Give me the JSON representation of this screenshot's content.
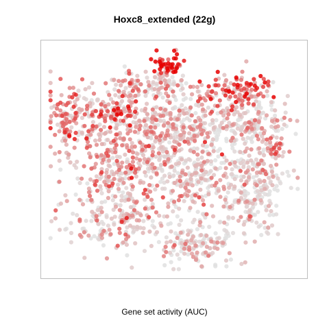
{
  "chart_data": {
    "type": "scatter",
    "title": "Hoxc8_extended (22g)",
    "xlabel": "Gene set activity (AUC)",
    "ylabel": "",
    "grid": false,
    "legend": "none",
    "color_scale": {
      "low": "#e0e0e0",
      "high": "#e60000"
    },
    "seed": 20240517,
    "clusters": [
      {
        "cx": 0.2,
        "cy": 0.3,
        "sx": 0.11,
        "sy": 0.07,
        "n": 210,
        "activity": 0.4
      },
      {
        "cx": 0.28,
        "cy": 0.52,
        "sx": 0.13,
        "sy": 0.1,
        "n": 300,
        "activity": 0.35
      },
      {
        "cx": 0.28,
        "cy": 0.76,
        "sx": 0.12,
        "sy": 0.07,
        "n": 200,
        "activity": 0.25
      },
      {
        "cx": 0.5,
        "cy": 0.33,
        "sx": 0.1,
        "sy": 0.07,
        "n": 230,
        "activity": 0.22
      },
      {
        "cx": 0.58,
        "cy": 0.55,
        "sx": 0.1,
        "sy": 0.11,
        "n": 300,
        "activity": 0.16
      },
      {
        "cx": 0.6,
        "cy": 0.87,
        "sx": 0.08,
        "sy": 0.05,
        "n": 150,
        "activity": 0.12
      },
      {
        "cx": 0.78,
        "cy": 0.34,
        "sx": 0.09,
        "sy": 0.06,
        "n": 190,
        "activity": 0.18
      },
      {
        "cx": 0.82,
        "cy": 0.62,
        "sx": 0.07,
        "sy": 0.11,
        "n": 230,
        "activity": 0.15
      },
      {
        "cx": 0.46,
        "cy": 0.16,
        "sx": 0.04,
        "sy": 0.03,
        "n": 60,
        "activity": 0.15
      },
      {
        "cx": 0.33,
        "cy": 0.16,
        "sx": 0.04,
        "sy": 0.03,
        "n": 40,
        "activity": 0.3
      },
      {
        "cx": 0.28,
        "cy": 0.29,
        "sx": 0.04,
        "sy": 0.015,
        "n": 30,
        "activity": 0.85
      },
      {
        "cx": 0.48,
        "cy": 0.08,
        "sx": 0.03,
        "sy": 0.025,
        "n": 55,
        "activity": 0.92
      },
      {
        "cx": 0.73,
        "cy": 0.19,
        "sx": 0.07,
        "sy": 0.035,
        "n": 110,
        "activity": 0.7
      },
      {
        "cx": 0.08,
        "cy": 0.32,
        "sx": 0.02,
        "sy": 0.06,
        "n": 40,
        "activity": 0.45
      },
      {
        "cx": 0.9,
        "cy": 0.45,
        "sx": 0.03,
        "sy": 0.04,
        "n": 30,
        "activity": 0.45
      }
    ]
  }
}
